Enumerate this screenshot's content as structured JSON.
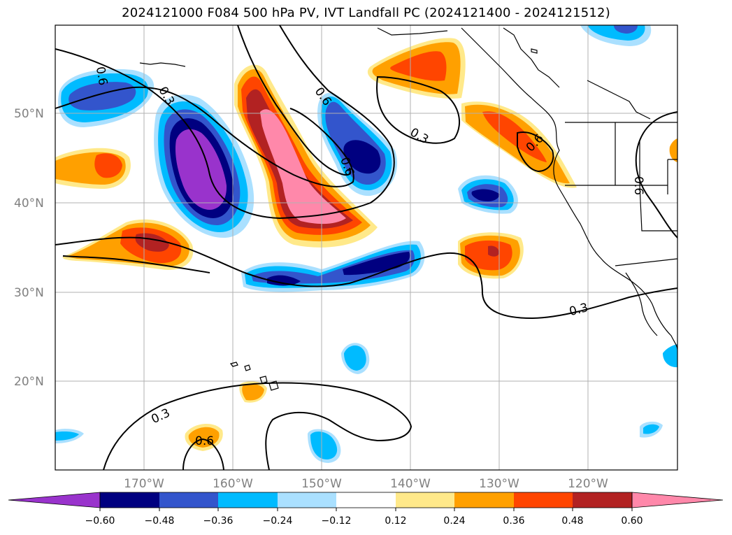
{
  "title": "2024121000 F084 500 hPa PV, IVT Landfall PC (2024121400 - 2024121512)",
  "map": {
    "lat_labels": [
      "50°N",
      "40°N",
      "30°N",
      "20°N"
    ],
    "lon_labels": [
      "170°W",
      "160°W",
      "150°W",
      "140°W",
      "130°W",
      "120°W"
    ],
    "contour_labels": [
      "0.6",
      "0.3",
      "0.6",
      "0.3",
      "0.6",
      "0.6",
      "0.6",
      "0.3",
      "0.3",
      "0.6"
    ],
    "contour_color": "#000000",
    "grid_color": "#b0b0b0",
    "land_outline_color": "#000000"
  },
  "colorbar": {
    "ticks": [
      "−0.60",
      "−0.48",
      "−0.36",
      "−0.24",
      "−0.12",
      "0.12",
      "0.24",
      "0.36",
      "0.48",
      "0.60"
    ],
    "colors": [
      "#9933cc",
      "#000080",
      "#3355cc",
      "#00bbff",
      "#aae0ff",
      "#ffffff",
      "#ffe98a",
      "#ffa000",
      "#ff4500",
      "#b22222",
      "#ff88aa"
    ]
  }
}
